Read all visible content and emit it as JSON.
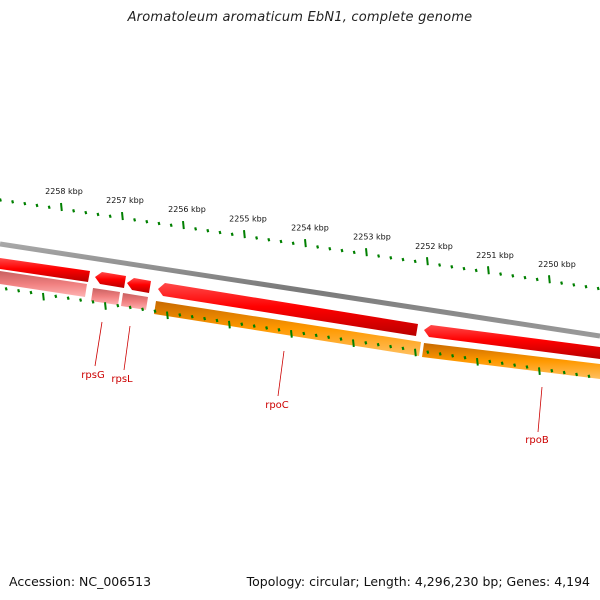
{
  "title": "Aromatoleum aromaticum EbN1, complete genome",
  "footer": {
    "accession": "Accession: NC_006513",
    "topology": "Topology: circular; Length: 4,296,230 bp; Genes: 4,194"
  },
  "scale_labels": [
    "2258 kbp",
    "2257 kbp",
    "2256 kbp",
    "2255 kbp",
    "2254 kbp",
    "2253 kbp",
    "2252 kbp",
    "2251 kbp",
    "2250 kbp"
  ],
  "genes": [
    "rpsG",
    "rpsL",
    "rpoC",
    "rpoB"
  ],
  "colors": {
    "backbone": "#808080",
    "cds_forward": "#ff0000",
    "cds_forward_light": "#f08080",
    "cds_orange": "#ff9900",
    "gene_label": "#cc0000",
    "ticks": "#008000"
  }
}
